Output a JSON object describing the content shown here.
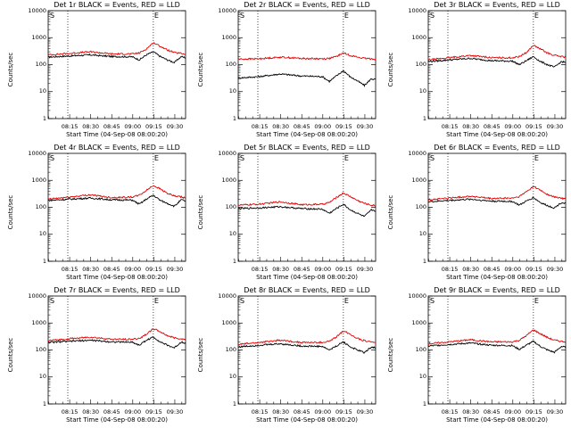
{
  "colors": {
    "events": "#000000",
    "lld": "#e00000",
    "axes": "#000000",
    "background": "#ffffff"
  },
  "ylabel": "Counts/sec",
  "xlabel": "Start Time (04-Sep-08 08:00:20)",
  "ytick_labels": [
    "10000",
    "1000",
    "100",
    "10",
    "1"
  ],
  "xtick_labels": [
    "08:15",
    "08:30",
    "08:45",
    "09:00",
    "09:15",
    "09:30"
  ],
  "marker_labels": [
    "S",
    "E"
  ],
  "panels": [
    {
      "title": "Det 1r BLACK = Events, RED = LLD"
    },
    {
      "title": "Det 2r BLACK = Events, RED = LLD"
    },
    {
      "title": "Det 3r BLACK = Events, RED = LLD"
    },
    {
      "title": "Det 4r BLACK = Events, RED = LLD"
    },
    {
      "title": "Det 5r BLACK = Events, RED = LLD"
    },
    {
      "title": "Det 6r BLACK = Events, RED = LLD"
    },
    {
      "title": "Det 7r BLACK = Events, RED = LLD"
    },
    {
      "title": "Det 8r BLACK = Events, RED = LLD"
    },
    {
      "title": "Det 9r BLACK = Events, RED = LLD"
    }
  ],
  "chart_data": [
    {
      "type": "line",
      "title": "Det 1r BLACK = Events, RED = LLD",
      "xlabel": "Start Time (04-Sep-08 08:00:20)",
      "ylabel": "Counts/sec",
      "yscale": "log",
      "ylim": [
        1,
        10000
      ],
      "xlim": [
        "08:00",
        "09:38"
      ],
      "vlines": [
        "08:14",
        "09:15"
      ],
      "series": [
        {
          "name": "Events",
          "color": "#000000",
          "x": [
            "08:00",
            "08:15",
            "08:30",
            "08:45",
            "09:00",
            "09:05",
            "09:10",
            "09:15",
            "09:20",
            "09:25",
            "09:30",
            "09:35",
            "09:38"
          ],
          "values": [
            190,
            210,
            230,
            200,
            195,
            150,
            230,
            300,
            200,
            150,
            120,
            200,
            180
          ]
        },
        {
          "name": "LLD",
          "color": "#e00000",
          "x": [
            "08:00",
            "08:15",
            "08:30",
            "08:45",
            "09:00",
            "09:05",
            "09:10",
            "09:15",
            "09:20",
            "09:25",
            "09:30",
            "09:35",
            "09:38"
          ],
          "values": [
            230,
            260,
            300,
            250,
            250,
            270,
            380,
            650,
            480,
            350,
            280,
            260,
            240
          ]
        }
      ]
    },
    {
      "type": "line",
      "title": "Det 2r BLACK = Events, RED = LLD",
      "xlabel": "Start Time (04-Sep-08 08:00:20)",
      "ylabel": "Counts/sec",
      "yscale": "log",
      "ylim": [
        1,
        10000
      ],
      "xlim": [
        "08:00",
        "09:38"
      ],
      "vlines": [
        "08:14",
        "09:15"
      ],
      "series": [
        {
          "name": "Events",
          "color": "#000000",
          "x": [
            "08:00",
            "08:15",
            "08:30",
            "08:45",
            "09:00",
            "09:05",
            "09:10",
            "09:15",
            "09:20",
            "09:25",
            "09:30",
            "09:35",
            "09:38"
          ],
          "values": [
            32,
            36,
            45,
            38,
            36,
            24,
            38,
            60,
            35,
            25,
            17,
            30,
            28
          ]
        },
        {
          "name": "LLD",
          "color": "#e00000",
          "x": [
            "08:00",
            "08:15",
            "08:30",
            "08:45",
            "09:00",
            "09:05",
            "09:10",
            "09:15",
            "09:20",
            "09:25",
            "09:30",
            "09:35",
            "09:38"
          ],
          "values": [
            160,
            165,
            190,
            170,
            165,
            170,
            200,
            270,
            220,
            190,
            170,
            165,
            160
          ]
        }
      ]
    },
    {
      "type": "line",
      "title": "Det 3r BLACK = Events, RED = LLD",
      "xlabel": "Start Time (04-Sep-08 08:00:20)",
      "ylabel": "Counts/sec",
      "yscale": "log",
      "ylim": [
        1,
        10000
      ],
      "xlim": [
        "08:00",
        "09:38"
      ],
      "vlines": [
        "08:14",
        "09:15"
      ],
      "series": [
        {
          "name": "Events",
          "color": "#000000",
          "x": [
            "08:00",
            "08:15",
            "08:30",
            "08:45",
            "09:00",
            "09:05",
            "09:10",
            "09:15",
            "09:20",
            "09:25",
            "09:30",
            "09:35",
            "09:38"
          ],
          "values": [
            130,
            150,
            170,
            140,
            135,
            100,
            140,
            200,
            130,
            100,
            80,
            130,
            120
          ]
        },
        {
          "name": "LLD",
          "color": "#e00000",
          "x": [
            "08:00",
            "08:15",
            "08:30",
            "08:45",
            "09:00",
            "09:05",
            "09:10",
            "09:15",
            "09:20",
            "09:25",
            "09:30",
            "09:35",
            "09:38"
          ],
          "values": [
            150,
            180,
            220,
            180,
            180,
            200,
            280,
            520,
            380,
            270,
            220,
            200,
            190
          ]
        }
      ]
    },
    {
      "type": "line",
      "title": "Det 4r BLACK = Events, RED = LLD",
      "xlabel": "Start Time (04-Sep-08 08:00:20)",
      "ylabel": "Counts/sec",
      "yscale": "log",
      "ylim": [
        1,
        10000
      ],
      "xlim": [
        "08:00",
        "09:38"
      ],
      "vlines": [
        "08:14",
        "09:15"
      ],
      "series": [
        {
          "name": "Events",
          "color": "#000000",
          "x": [
            "08:00",
            "08:15",
            "08:30",
            "08:45",
            "09:00",
            "09:05",
            "09:10",
            "09:15",
            "09:20",
            "09:25",
            "09:30",
            "09:35",
            "09:38"
          ],
          "values": [
            180,
            200,
            220,
            190,
            185,
            130,
            200,
            280,
            180,
            140,
            110,
            190,
            170
          ]
        },
        {
          "name": "LLD",
          "color": "#e00000",
          "x": [
            "08:00",
            "08:15",
            "08:30",
            "08:45",
            "09:00",
            "09:05",
            "09:10",
            "09:15",
            "09:20",
            "09:25",
            "09:30",
            "09:35",
            "09:38"
          ],
          "values": [
            200,
            240,
            290,
            230,
            240,
            280,
            420,
            650,
            480,
            330,
            260,
            240,
            220
          ]
        }
      ]
    },
    {
      "type": "line",
      "title": "Det 5r BLACK = Events, RED = LLD",
      "xlabel": "Start Time (04-Sep-08 08:00:20)",
      "ylabel": "Counts/sec",
      "yscale": "log",
      "ylim": [
        1,
        10000
      ],
      "xlim": [
        "08:00",
        "09:38"
      ],
      "vlines": [
        "08:14",
        "09:15"
      ],
      "series": [
        {
          "name": "Events",
          "color": "#000000",
          "x": [
            "08:00",
            "08:15",
            "08:30",
            "08:45",
            "09:00",
            "09:05",
            "09:10",
            "09:15",
            "09:20",
            "09:25",
            "09:30",
            "09:35",
            "09:38"
          ],
          "values": [
            90,
            95,
            105,
            90,
            85,
            60,
            90,
            130,
            80,
            60,
            45,
            80,
            75
          ]
        },
        {
          "name": "LLD",
          "color": "#e00000",
          "x": [
            "08:00",
            "08:15",
            "08:30",
            "08:45",
            "09:00",
            "09:05",
            "09:10",
            "09:15",
            "09:20",
            "09:25",
            "09:30",
            "09:35",
            "09:38"
          ],
          "values": [
            120,
            130,
            160,
            125,
            130,
            150,
            230,
            340,
            250,
            180,
            140,
            120,
            115
          ]
        }
      ]
    },
    {
      "type": "line",
      "title": "Det 6r BLACK = Events, RED = LLD",
      "xlabel": "Start Time (04-Sep-08 08:00:20)",
      "ylabel": "Counts/sec",
      "yscale": "log",
      "ylim": [
        1,
        10000
      ],
      "xlim": [
        "08:00",
        "09:38"
      ],
      "vlines": [
        "08:14",
        "09:15"
      ],
      "series": [
        {
          "name": "Events",
          "color": "#000000",
          "x": [
            "08:00",
            "08:15",
            "08:30",
            "08:45",
            "09:00",
            "09:05",
            "09:10",
            "09:15",
            "09:20",
            "09:25",
            "09:30",
            "09:35",
            "09:38"
          ],
          "values": [
            160,
            180,
            200,
            170,
            165,
            120,
            170,
            230,
            150,
            115,
            95,
            150,
            140
          ]
        },
        {
          "name": "LLD",
          "color": "#e00000",
          "x": [
            "08:00",
            "08:15",
            "08:30",
            "08:45",
            "09:00",
            "09:05",
            "09:10",
            "09:15",
            "09:20",
            "09:25",
            "09:30",
            "09:35",
            "09:38"
          ],
          "values": [
            190,
            220,
            260,
            210,
            220,
            250,
            380,
            600,
            430,
            300,
            240,
            220,
            200
          ]
        }
      ]
    },
    {
      "type": "line",
      "title": "Det 7r BLACK = Events, RED = LLD",
      "xlabel": "Start Time (04-Sep-08 08:00:20)",
      "ylabel": "Counts/sec",
      "yscale": "log",
      "ylim": [
        1,
        10000
      ],
      "xlim": [
        "08:00",
        "09:38"
      ],
      "vlines": [
        "08:14",
        "09:15"
      ],
      "series": [
        {
          "name": "Events",
          "color": "#000000",
          "x": [
            "08:00",
            "08:15",
            "08:30",
            "08:45",
            "09:00",
            "09:05",
            "09:10",
            "09:15",
            "09:20",
            "09:25",
            "09:30",
            "09:35",
            "09:38"
          ],
          "values": [
            190,
            210,
            230,
            200,
            195,
            150,
            230,
            300,
            200,
            150,
            120,
            200,
            180
          ]
        },
        {
          "name": "LLD",
          "color": "#e00000",
          "x": [
            "08:00",
            "08:15",
            "08:30",
            "08:45",
            "09:00",
            "09:05",
            "09:10",
            "09:15",
            "09:20",
            "09:25",
            "09:30",
            "09:35",
            "09:38"
          ],
          "values": [
            220,
            260,
            300,
            250,
            250,
            270,
            380,
            620,
            470,
            340,
            280,
            260,
            240
          ]
        }
      ]
    },
    {
      "type": "line",
      "title": "Det 8r BLACK = Events, RED = LLD",
      "xlabel": "Start Time (04-Sep-08 08:00:20)",
      "ylabel": "Counts/sec",
      "yscale": "log",
      "ylim": [
        1,
        10000
      ],
      "xlim": [
        "08:00",
        "09:38"
      ],
      "vlines": [
        "08:14",
        "09:15"
      ],
      "series": [
        {
          "name": "Events",
          "color": "#000000",
          "x": [
            "08:00",
            "08:15",
            "08:30",
            "08:45",
            "09:00",
            "09:05",
            "09:10",
            "09:15",
            "09:20",
            "09:25",
            "09:30",
            "09:35",
            "09:38"
          ],
          "values": [
            130,
            150,
            170,
            140,
            135,
            100,
            140,
            200,
            130,
            100,
            80,
            130,
            120
          ]
        },
        {
          "name": "LLD",
          "color": "#e00000",
          "x": [
            "08:00",
            "08:15",
            "08:30",
            "08:45",
            "09:00",
            "09:05",
            "09:10",
            "09:15",
            "09:20",
            "09:25",
            "09:30",
            "09:35",
            "09:38"
          ],
          "values": [
            160,
            190,
            230,
            190,
            190,
            210,
            300,
            520,
            380,
            270,
            220,
            200,
            190
          ]
        }
      ]
    },
    {
      "type": "line",
      "title": "Det 9r BLACK = Events, RED = LLD",
      "xlabel": "Start Time (04-Sep-08 08:00:20)",
      "ylabel": "Counts/sec",
      "yscale": "log",
      "ylim": [
        1,
        10000
      ],
      "xlim": [
        "08:00",
        "09:38"
      ],
      "vlines": [
        "08:14",
        "09:15"
      ],
      "series": [
        {
          "name": "Events",
          "color": "#000000",
          "x": [
            "08:00",
            "08:15",
            "08:30",
            "08:45",
            "09:00",
            "09:05",
            "09:10",
            "09:15",
            "09:20",
            "09:25",
            "09:30",
            "09:35",
            "09:38"
          ],
          "values": [
            140,
            160,
            180,
            150,
            145,
            105,
            150,
            210,
            135,
            100,
            82,
            135,
            125
          ]
        },
        {
          "name": "LLD",
          "color": "#e00000",
          "x": [
            "08:00",
            "08:15",
            "08:30",
            "08:45",
            "09:00",
            "09:05",
            "09:10",
            "09:15",
            "09:20",
            "09:25",
            "09:30",
            "09:35",
            "09:38"
          ],
          "values": [
            170,
            200,
            240,
            200,
            200,
            230,
            340,
            560,
            400,
            290,
            230,
            210,
            200
          ]
        }
      ]
    }
  ]
}
